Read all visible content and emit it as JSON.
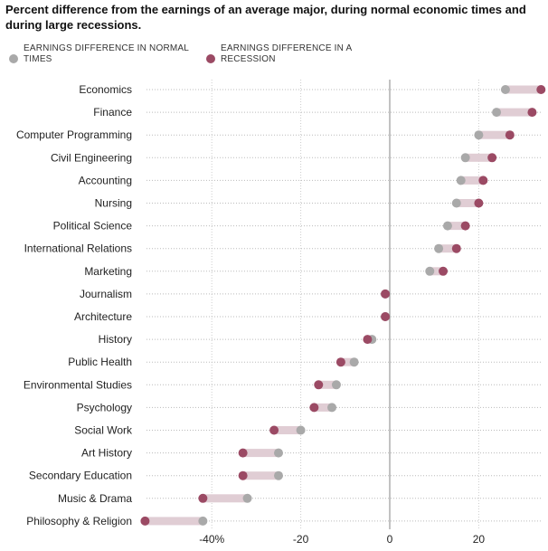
{
  "chart_data": {
    "type": "dot-range",
    "title": "Percent difference from the earnings of an average major, during normal economic times and during large recessions.",
    "series": [
      {
        "name": "EARNINGS DIFFERENCE IN NORMAL TIMES",
        "color": "#a9a9a9"
      },
      {
        "name": "EARNINGS DIFFERENCE IN A RECESSION",
        "color": "#9b4a64"
      }
    ],
    "categories": [
      "Economics",
      "Finance",
      "Computer Programming",
      "Civil Engineering",
      "Accounting",
      "Nursing",
      "Political Science",
      "International Relations",
      "Marketing",
      "Journalism",
      "Architecture",
      "History",
      "Public Health",
      "Environmental Studies",
      "Psychology",
      "Social Work",
      "Art History",
      "Secondary Education",
      "Music & Drama",
      "Philosophy & Religion"
    ],
    "normal": [
      26,
      24,
      20,
      17,
      16,
      15,
      13,
      11,
      9,
      -1,
      -1,
      -4,
      -8,
      -12,
      -13,
      -20,
      -25,
      -25,
      -32,
      -42
    ],
    "recession": [
      34,
      32,
      27,
      23,
      21,
      20,
      17,
      15,
      12,
      -1,
      -1,
      -5,
      -11,
      -16,
      -17,
      -26,
      -33,
      -33,
      -42,
      -55
    ],
    "xlim": [
      -55,
      35
    ],
    "xticks": [
      -40,
      -20,
      0,
      20
    ],
    "xtick_labels": [
      "-40%",
      "-20",
      "0",
      "20"
    ],
    "grid": "vertical dotted"
  },
  "colors": {
    "range_bar": "#e0cdd4",
    "zero_line": "#999999",
    "grid": "#cccccc",
    "row_leader": "#bbbbbb"
  }
}
